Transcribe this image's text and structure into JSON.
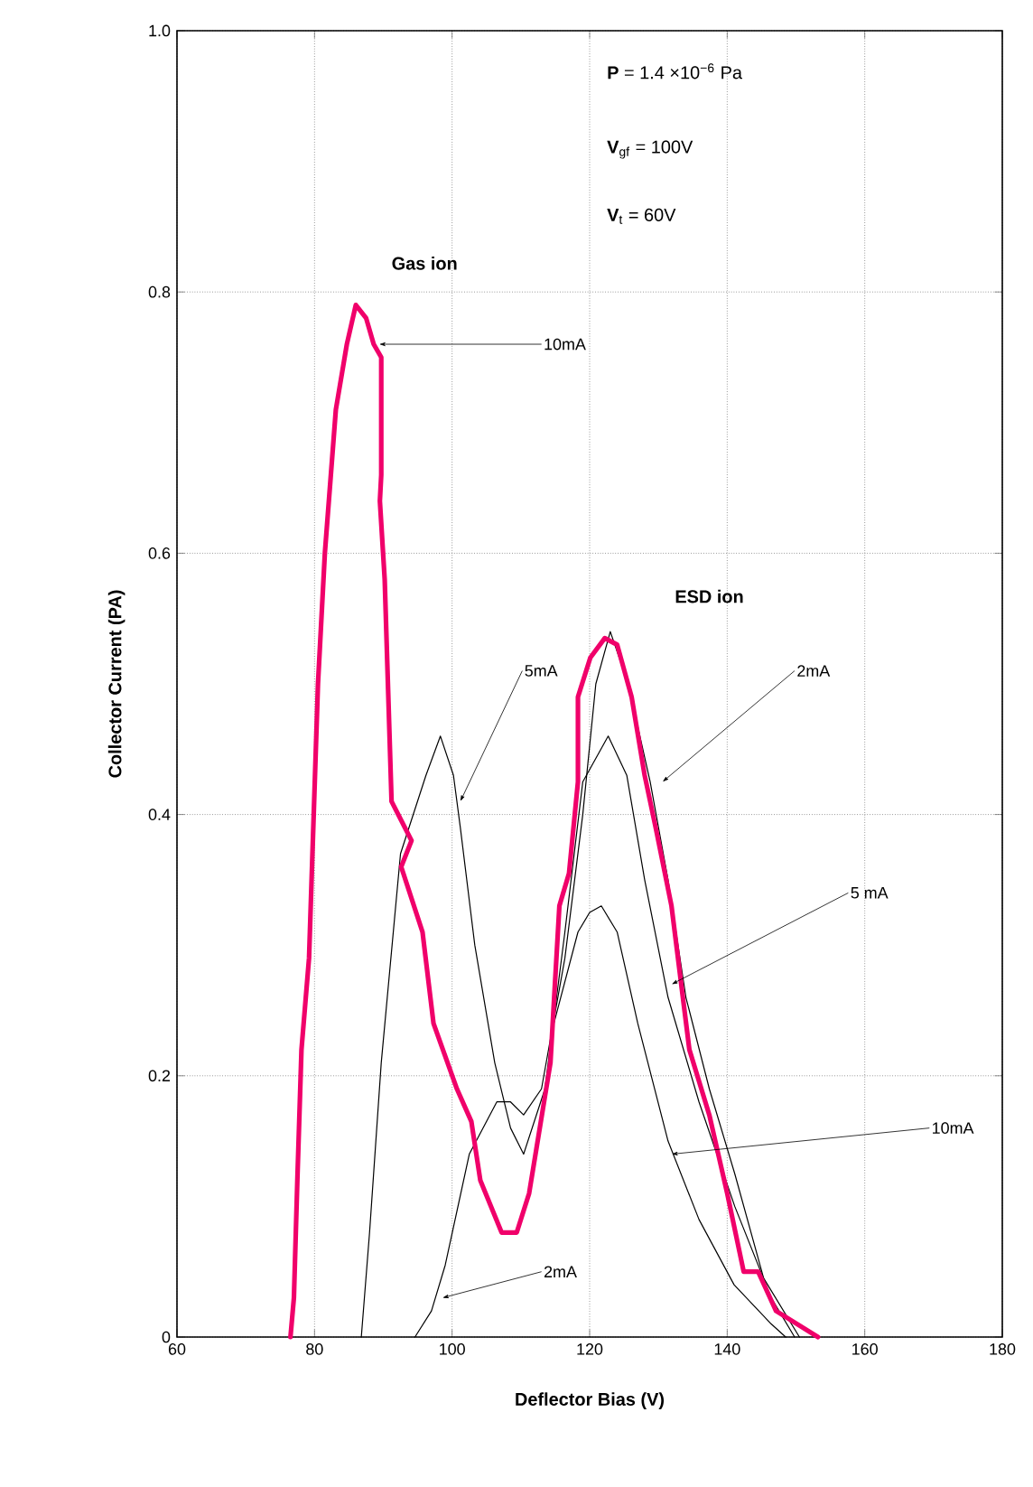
{
  "chart_data": {
    "type": "line",
    "xlabel": "Deflector Bias (V)",
    "ylabel": "Collector Current (PA)",
    "xlim": [
      60,
      180
    ],
    "xticks": [
      60,
      80,
      100,
      120,
      140,
      160,
      180
    ],
    "ylim": [
      0,
      1
    ],
    "yticks": [
      0,
      0.2,
      0.4,
      0.6,
      0.8,
      {
        "value": 1,
        "label": "1.0"
      }
    ],
    "grid": true,
    "series": [
      {
        "color": "#000000",
        "x": [
          114.8,
          118.3,
          120,
          121.7,
          124,
          127,
          131.4,
          135.9,
          141,
          146.4,
          148.5
        ],
        "values": [
          0.24,
          0.31,
          0.325,
          0.33,
          0.31,
          0.24,
          0.15,
          0.09,
          0.04,
          0.01,
          0
        ]
      },
      {
        "color": "#000000",
        "x": [
          86.8,
          88,
          89.7,
          92.5,
          96.2,
          98.3,
          100.2,
          101.2,
          103.3,
          106.2,
          108.5,
          110.4,
          113.5,
          116.4,
          119,
          122.7,
          125.4,
          128,
          131.4,
          135.9,
          141.1,
          146.4,
          149.8
        ],
        "values": [
          0,
          0.08,
          0.21,
          0.37,
          0.43,
          0.46,
          0.43,
          0.39,
          0.3,
          0.21,
          0.16,
          0.14,
          0.19,
          0.31,
          0.425,
          0.46,
          0.43,
          0.35,
          0.26,
          0.18,
          0.1,
          0.03,
          0
        ]
      },
      {
        "color": "#000000",
        "x": [
          94.6,
          97,
          99,
          102.5,
          106.5,
          108.5,
          110.4,
          113,
          116.4,
          119,
          120.9,
          123,
          125.6,
          128.8,
          131.4,
          134,
          137.4,
          141.1,
          145.3,
          150.5
        ],
        "values": [
          0,
          0.02,
          0.055,
          0.14,
          0.18,
          0.18,
          0.17,
          0.19,
          0.29,
          0.4,
          0.5,
          0.54,
          0.5,
          0.425,
          0.35,
          0.26,
          0.19,
          0.125,
          0.045,
          0
        ]
      },
      {
        "color": "#f0006a",
        "x": [
          76.5,
          77,
          77.5,
          78.1,
          79.2,
          80.5,
          81.5,
          83.1,
          84.7,
          86,
          87.5,
          88.6,
          89.7,
          89.7,
          89.5,
          90.2,
          91.2,
          94.1,
          92.6,
          95.7,
          97.3,
          100.7,
          102.8,
          104.1,
          107.2,
          109.4,
          111.2,
          114.3,
          115.6,
          117,
          118.3,
          118.3,
          120.1,
          122.2,
          124,
          126.1,
          128,
          129.6,
          131.9,
          134.5,
          137.4,
          140,
          142.4,
          144.5,
          147.1,
          153.2
        ],
        "values": [
          0,
          0.03,
          0.12,
          0.22,
          0.29,
          0.5,
          0.6,
          0.71,
          0.76,
          0.79,
          0.78,
          0.76,
          0.75,
          0.66,
          0.64,
          0.58,
          0.41,
          0.38,
          0.36,
          0.31,
          0.24,
          0.19,
          0.165,
          0.12,
          0.08,
          0.08,
          0.11,
          0.21,
          0.33,
          0.355,
          0.425,
          0.49,
          0.52,
          0.535,
          0.53,
          0.49,
          0.43,
          0.39,
          0.33,
          0.22,
          0.17,
          0.11,
          0.05,
          0.05,
          0.02,
          0
        ]
      }
    ],
    "annotations": [
      "**P** = 1.4 ×10$^{−6}$ Pa",
      "**V**$_{gf}$ = 100V",
      "**V**$_{t}$ = 60V",
      "Gas ion",
      "ESD ion",
      {
        "text": "10mA",
        "x": 89.4,
        "y": 0.76
      },
      {
        "text": "5mA",
        "x": 101.2,
        "y": 0.41
      },
      {
        "text": "2mA",
        "x": 98.6,
        "y": 0.03
      },
      {
        "text": "2mA",
        "x": 130.6,
        "y": 0.425
      },
      {
        "text": "5 mA",
        "x": 131.9,
        "y": 0.27
      },
      {
        "text": "10mA",
        "x": 131.9,
        "y": 0.14
      }
    ]
  }
}
